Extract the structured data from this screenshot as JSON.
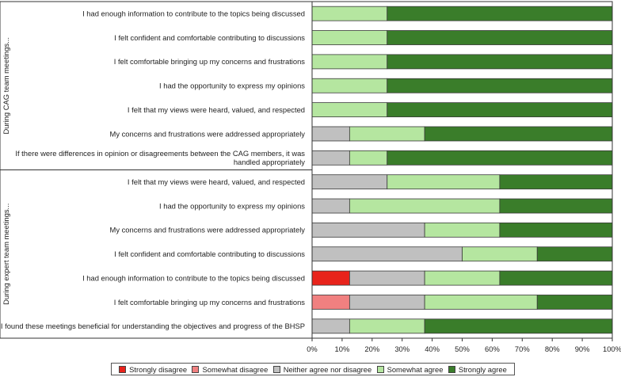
{
  "chart_data": {
    "type": "bar",
    "orientation": "horizontal",
    "stacked": true,
    "x_axis": {
      "min": 0,
      "max": 100,
      "ticks": [
        "0%",
        "10%",
        "20%",
        "30%",
        "40%",
        "50%",
        "60%",
        "70%",
        "80%",
        "90%",
        "100%"
      ]
    },
    "categories": [
      "Strongly disagree",
      "Somewhat disagree",
      "Neither agree nor disagree",
      "Somewhat agree",
      "Strongly agree"
    ],
    "colors": [
      "#e8231b",
      "#f08080",
      "#c0c0c0",
      "#b5e6a0",
      "#3a7d2a"
    ],
    "groups": [
      {
        "label": "During CAG team meetings...",
        "rows": [
          {
            "label": [
              "I had enough information to contribute to the topics being discussed"
            ],
            "values": [
              0,
              0,
              0,
              25,
              75
            ]
          },
          {
            "label": [
              "I felt confident and comfortable contributing to discussions"
            ],
            "values": [
              0,
              0,
              0,
              25,
              75
            ]
          },
          {
            "label": [
              "I felt comfortable bringing up my concerns and frustrations"
            ],
            "values": [
              0,
              0,
              0,
              25,
              75
            ]
          },
          {
            "label": [
              "I had the opportunity to express my opinions"
            ],
            "values": [
              0,
              0,
              0,
              25,
              75
            ]
          },
          {
            "label": [
              "I felt that my views were heard, valued, and respected"
            ],
            "values": [
              0,
              0,
              0,
              25,
              75
            ]
          },
          {
            "label": [
              "My concerns and frustrations were addressed appropriately"
            ],
            "values": [
              0,
              0,
              12.5,
              25,
              62.5
            ]
          },
          {
            "label": [
              "If there were differences in opinion or disagreements between the CAG members, it was",
              "handled appropriately"
            ],
            "values": [
              0,
              0,
              12.5,
              12.5,
              75
            ]
          }
        ]
      },
      {
        "label": "During expert team meetings...",
        "rows": [
          {
            "label": [
              "I felt that my views were heard, valued, and respected"
            ],
            "values": [
              0,
              0,
              25,
              37.5,
              37.5
            ]
          },
          {
            "label": [
              "I had the opportunity to express my opinions"
            ],
            "values": [
              0,
              0,
              12.5,
              50,
              37.5
            ]
          },
          {
            "label": [
              "My concerns and frustrations were addressed appropriately"
            ],
            "values": [
              0,
              0,
              37.5,
              25,
              37.5
            ]
          },
          {
            "label": [
              "I felt confident and comfortable contributing to discussions"
            ],
            "values": [
              0,
              0,
              50,
              25,
              25
            ]
          },
          {
            "label": [
              "I had enough information to contribute to the topics being discussed"
            ],
            "values": [
              12.5,
              0,
              25,
              25,
              37.5
            ]
          },
          {
            "label": [
              "I felt comfortable bringing up my concerns and frustrations"
            ],
            "values": [
              0,
              12.5,
              25,
              37.5,
              25
            ]
          },
          {
            "label": [
              "I found these meetings beneficial for understanding the objectives and progress of the BHSP"
            ],
            "values": [
              0,
              0,
              12.5,
              25,
              62.5
            ]
          }
        ]
      }
    ]
  }
}
